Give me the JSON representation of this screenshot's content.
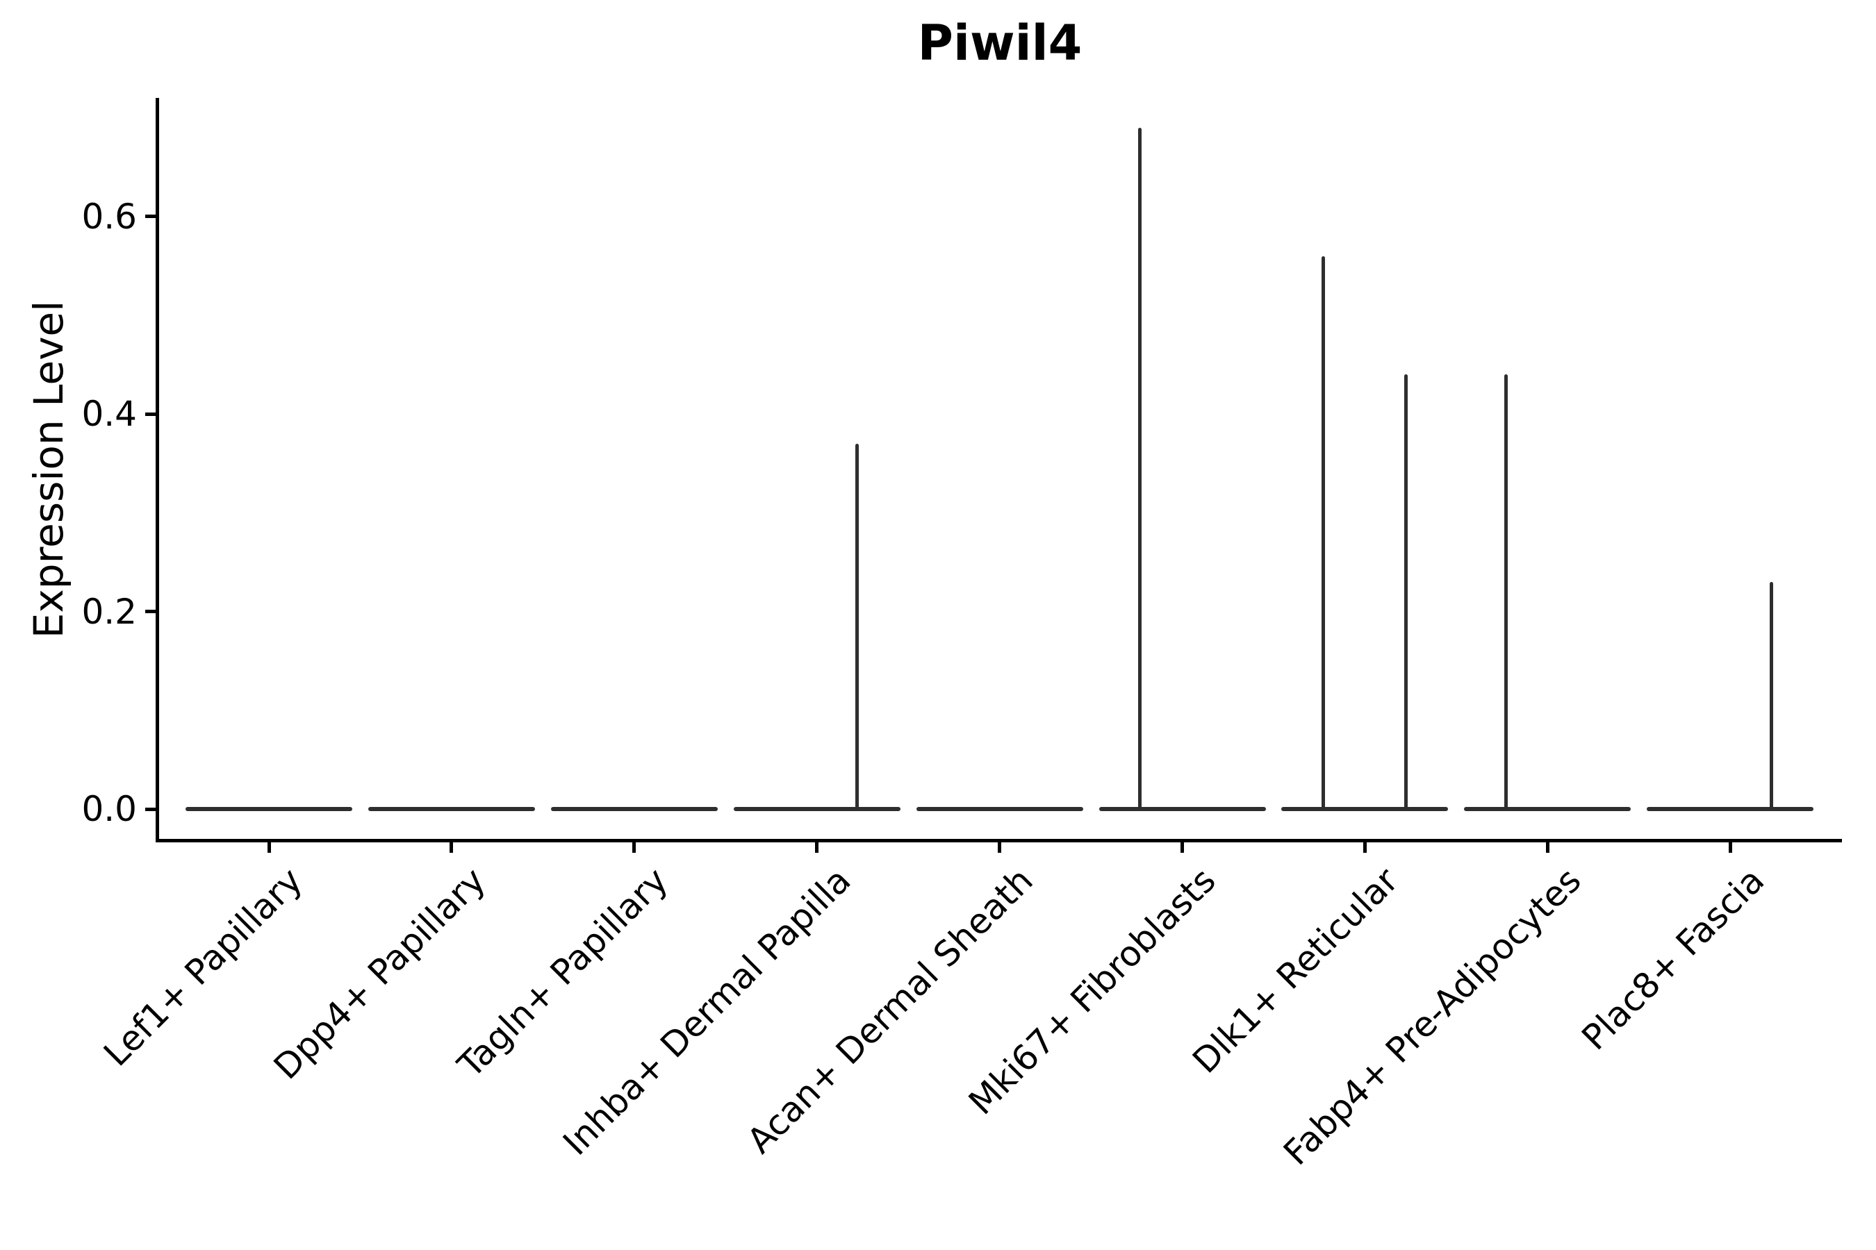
{
  "figure": {
    "background": "#ffffff"
  },
  "style": {
    "violin_color": "#2e2e2e",
    "axis_color": "#000000",
    "text_color": "#000000"
  },
  "chart_data": {
    "type": "violin",
    "title": "Piwil4",
    "xlabel": "",
    "ylabel": "Expression Level",
    "categories": [
      "Lef1+ Papillary",
      "Dpp4+ Papillary",
      "Tagln+ Papillary",
      "Inhba+ Dermal Papilla",
      "Acan+ Dermal Sheath",
      "Mki67+ Fibroblasts",
      "Dlk1+ Reticular",
      "Fabp4+ Pre-Adipocytes",
      "Plac8+ Fascia"
    ],
    "y_ticks": [
      0.0,
      0.2,
      0.4,
      0.6
    ],
    "y_tick_labels": [
      "0.0",
      "0.2",
      "0.4",
      "0.6"
    ],
    "ylim": [
      -0.03,
      0.72
    ],
    "grid": false,
    "legend": "none",
    "series": [
      {
        "name": "Lef1+ Papillary",
        "baseline_value": 0.0,
        "spikes": []
      },
      {
        "name": "Dpp4+ Papillary",
        "baseline_value": 0.0,
        "spikes": []
      },
      {
        "name": "Tagln+ Papillary",
        "baseline_value": 0.0,
        "spikes": []
      },
      {
        "name": "Inhba+ Dermal Papilla",
        "baseline_value": 0.0,
        "spikes": [
          {
            "value": 0.37,
            "offset_frac": 0.48
          }
        ]
      },
      {
        "name": "Acan+ Dermal Sheath",
        "baseline_value": 0.0,
        "spikes": []
      },
      {
        "name": "Mki67+ Fibroblasts",
        "baseline_value": 0.0,
        "spikes": [
          {
            "value": 0.69,
            "offset_frac": -0.51
          }
        ]
      },
      {
        "name": "Dlk1+ Reticular",
        "baseline_value": 0.0,
        "spikes": [
          {
            "value": 0.56,
            "offset_frac": -0.5
          },
          {
            "value": 0.44,
            "offset_frac": 0.49
          }
        ]
      },
      {
        "name": "Fabp4+ Pre-Adipocytes",
        "baseline_value": 0.0,
        "spikes": [
          {
            "value": 0.44,
            "offset_frac": -0.5
          }
        ]
      },
      {
        "name": "Plac8+ Fascia",
        "baseline_value": 0.0,
        "spikes": [
          {
            "value": 0.23,
            "offset_frac": 0.49
          }
        ]
      }
    ]
  }
}
